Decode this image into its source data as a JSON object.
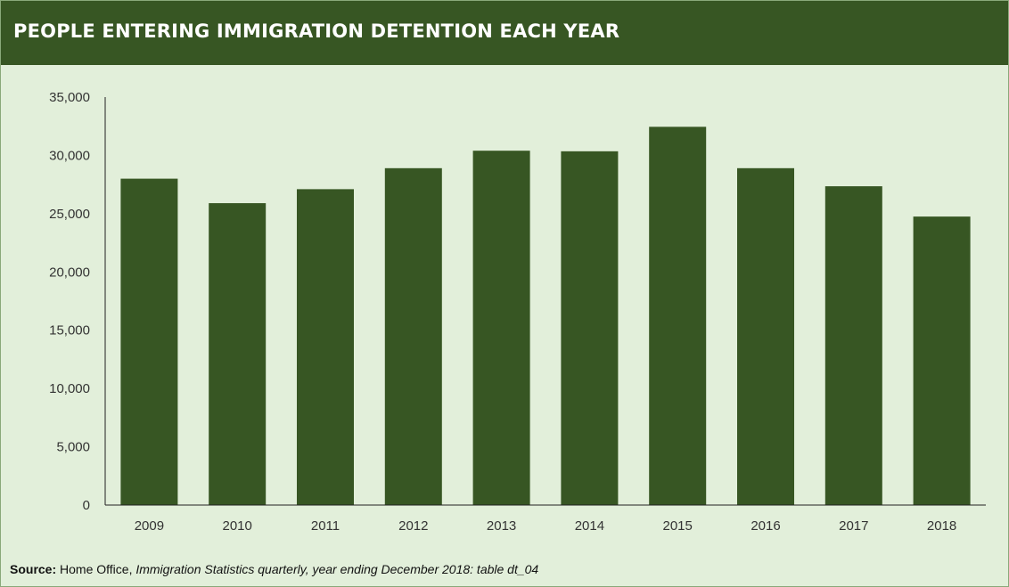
{
  "title": "PEOPLE ENTERING IMMIGRATION DETENTION EACH YEAR",
  "source": {
    "label": "Source:",
    "publisher": "Home Office,",
    "citation": "Immigration Statistics quarterly, year ending December 2018: table dt_04"
  },
  "colors": {
    "header_bg": "#375623",
    "panel_bg": "#e2efda",
    "bar": "#375623"
  },
  "chart_data": {
    "type": "bar",
    "categories": [
      "2009",
      "2010",
      "2011",
      "2012",
      "2013",
      "2014",
      "2015",
      "2016",
      "2017",
      "2018"
    ],
    "values": [
      28000,
      25900,
      27100,
      28900,
      30400,
      30350,
      32450,
      28900,
      27350,
      24750
    ],
    "ylim": [
      0,
      35000
    ],
    "yticks": [
      0,
      5000,
      10000,
      15000,
      20000,
      25000,
      30000,
      35000
    ],
    "ytick_labels": [
      "0",
      "5,000",
      "10,000",
      "15,000",
      "20,000",
      "25,000",
      "30,000",
      "35,000"
    ],
    "grid": false,
    "legend": "none"
  }
}
